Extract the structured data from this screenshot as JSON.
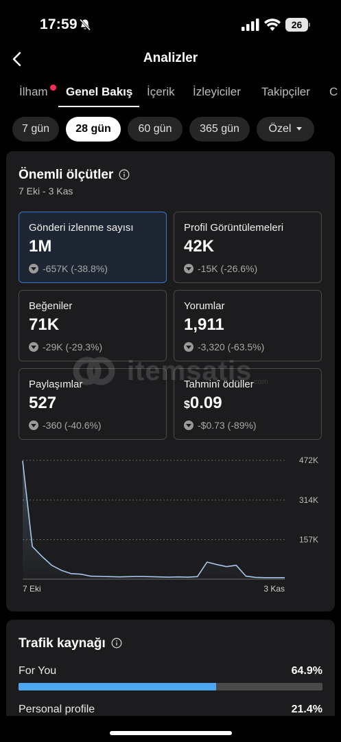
{
  "status_bar": {
    "time": "17:59",
    "battery": "26",
    "icons": [
      "bell-slash-icon",
      "cellular-signal-icon",
      "wifi-icon",
      "battery-icon"
    ]
  },
  "header": {
    "title": "Analizler",
    "back_icon": "chevron-left-icon"
  },
  "tabs": [
    {
      "label": "İlham",
      "active": false,
      "has_dot": true
    },
    {
      "label": "Genel Bakış",
      "active": true
    },
    {
      "label": "İçerik",
      "active": false
    },
    {
      "label": "İzleyiciler",
      "active": false
    },
    {
      "label": "Takipçiler",
      "active": false
    },
    {
      "label": "C",
      "active": false
    }
  ],
  "ranges": [
    {
      "label": "7 gün",
      "active": false
    },
    {
      "label": "28 gün",
      "active": true
    },
    {
      "label": "60 gün",
      "active": false
    },
    {
      "label": "365 gün",
      "active": false
    },
    {
      "label": "Özel",
      "active": false,
      "dropdown": true
    }
  ],
  "key_metrics": {
    "title": "Önemli ölçütler",
    "date_range": "7 Eki - 3 Kas",
    "metrics": [
      {
        "label": "Gönderi izlenme sayısı",
        "value": "1M",
        "change": "-657K (-38.8%)",
        "selected": true
      },
      {
        "label": "Profil Görüntülemeleri",
        "value": "42K",
        "change": "-15K (-26.6%)"
      },
      {
        "label": "Beğeniler",
        "value": "71K",
        "change": "-29K (-29.3%)"
      },
      {
        "label": "Yorumlar",
        "value": "1,911",
        "change": "-3,320 (-63.5%)"
      },
      {
        "label": "Paylaşımlar",
        "value": "527",
        "change": "-360 (-40.6%)"
      },
      {
        "label": "Tahminî ödüller",
        "currency": "$",
        "value": "0.09",
        "change": "-$0.73 (-89%)"
      }
    ]
  },
  "watermark": {
    "text": "itemsatis",
    "suffix": ".com"
  },
  "chart_data": {
    "type": "area",
    "x_labels": [
      "7 Eki",
      "3 Kas"
    ],
    "y_ticks": [
      "472K",
      "314K",
      "157K"
    ],
    "y_tick_values": [
      472000,
      314000,
      157000
    ],
    "ylim": [
      0,
      472000
    ],
    "grid": true,
    "values": [
      470000,
      130000,
      90000,
      55000,
      35000,
      22000,
      20000,
      12000,
      11000,
      10000,
      9000,
      10000,
      11000,
      10000,
      9000,
      8000,
      9000,
      8000,
      10000,
      68000,
      58000,
      50000,
      55000,
      12000,
      7000,
      6000,
      6000,
      6000
    ],
    "color": "#a7c7ec"
  },
  "traffic": {
    "title": "Trafik kaynağı",
    "rows": [
      {
        "label": "For You",
        "value": "64.9%",
        "fraction": 0.649
      },
      {
        "label": "Personal profile",
        "value": "21.4%",
        "fraction": 0.214
      }
    ],
    "bar_color": "#4ea8f2"
  }
}
